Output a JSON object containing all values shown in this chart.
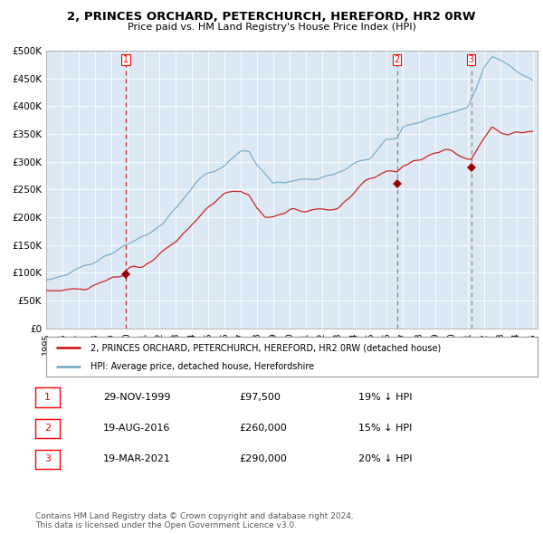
{
  "title": "2, PRINCES ORCHARD, PETERCHURCH, HEREFORD, HR2 0RW",
  "subtitle": "Price paid vs. HM Land Registry's House Price Index (HPI)",
  "ylim": [
    0,
    500000
  ],
  "yticks": [
    0,
    50000,
    100000,
    150000,
    200000,
    250000,
    300000,
    350000,
    400000,
    450000,
    500000
  ],
  "ytick_labels": [
    "£0",
    "£50K",
    "£100K",
    "£150K",
    "£200K",
    "£250K",
    "£300K",
    "£350K",
    "£400K",
    "£450K",
    "£500K"
  ],
  "background_color": "#dce9f5",
  "red_line_color": "#cc2222",
  "blue_line_color": "#7aadcc",
  "sale_marker_color": "#990000",
  "vline_color_sale1": "#cc2222",
  "vline_color_sale23": "#888888",
  "legend_line1": "2, PRINCES ORCHARD, PETERCHURCH, HEREFORD, HR2 0RW (detached house)",
  "legend_line2": "HPI: Average price, detached house, Herefordshire",
  "sale1_year": 1999.91,
  "sale1_price": 97500,
  "sale2_year": 2016.63,
  "sale2_price": 260000,
  "sale3_year": 2021.21,
  "sale3_price": 290000,
  "hpi_anchors_x": [
    1995,
    1996,
    1997,
    1998,
    1999,
    2000,
    2001,
    2002,
    2003,
    2004,
    2005,
    2006,
    2007,
    2007.5,
    2008,
    2008.5,
    2009,
    2009.5,
    2010,
    2011,
    2012,
    2013,
    2013.5,
    2014,
    2015,
    2016,
    2016.63,
    2017,
    2018,
    2019,
    2020,
    2021,
    2021.5,
    2022,
    2022.5,
    2023,
    2023.5,
    2024,
    2025
  ],
  "hpi_anchors_y": [
    87000,
    93000,
    100000,
    110000,
    120000,
    135000,
    155000,
    175000,
    200000,
    230000,
    260000,
    272000,
    295000,
    298000,
    275000,
    258000,
    242000,
    248000,
    253000,
    255000,
    257000,
    260000,
    262000,
    268000,
    278000,
    305000,
    305882,
    325000,
    335000,
    345000,
    360000,
    365000,
    395000,
    440000,
    460000,
    455000,
    445000,
    435000,
    420000
  ],
  "prop_anchors_x": [
    1995,
    1996,
    1997,
    1998,
    1999,
    1999.91,
    2000,
    2001,
    2002,
    2003,
    2004,
    2005,
    2006,
    2007,
    2007.5,
    2008,
    2008.5,
    2009,
    2009.5,
    2010,
    2011,
    2012,
    2013,
    2013.5,
    2014,
    2015,
    2016,
    2016.63,
    2017,
    2018,
    2019,
    2020,
    2021,
    2021.21,
    2022,
    2022.5,
    2023,
    2023.5,
    2024,
    2025
  ],
  "prop_anchors_y": [
    68000,
    72000,
    76000,
    80000,
    90000,
    97500,
    105000,
    120000,
    145000,
    165000,
    190000,
    215000,
    232000,
    242000,
    232000,
    210000,
    195000,
    198000,
    205000,
    210000,
    210000,
    215000,
    215000,
    220000,
    228000,
    248000,
    260000,
    260000,
    272000,
    285000,
    295000,
    300000,
    290000,
    290000,
    330000,
    350000,
    345000,
    340000,
    345000,
    345000
  ],
  "table_data": [
    [
      "1",
      "29-NOV-1999",
      "£97,500",
      "19% ↓ HPI"
    ],
    [
      "2",
      "19-AUG-2016",
      "£260,000",
      "15% ↓ HPI"
    ],
    [
      "3",
      "19-MAR-2021",
      "£290,000",
      "20% ↓ HPI"
    ]
  ],
  "footer": "Contains HM Land Registry data © Crown copyright and database right 2024.\nThis data is licensed under the Open Government Licence v3.0.",
  "x_start_year": 1995.0,
  "x_end_year": 2025.3
}
